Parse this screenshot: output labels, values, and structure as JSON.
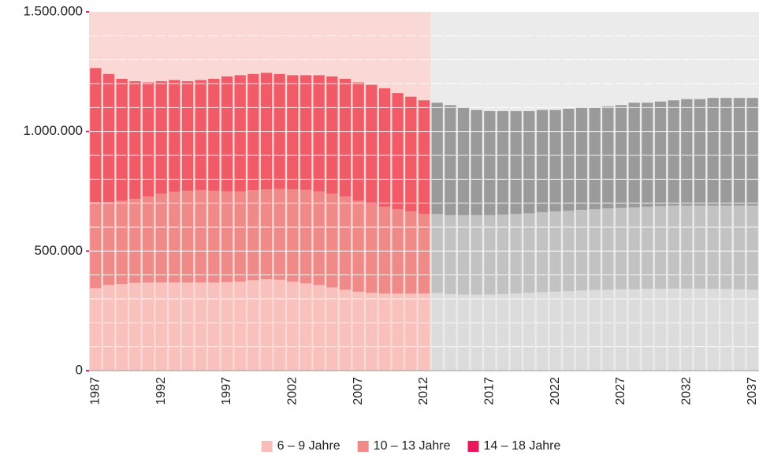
{
  "chart_data": {
    "type": "stacked_bar",
    "categories": [
      "1987",
      null,
      null,
      null,
      null,
      "1992",
      null,
      null,
      null,
      null,
      "1997",
      null,
      null,
      null,
      null,
      "2002",
      null,
      null,
      null,
      null,
      "2007",
      null,
      null,
      null,
      null,
      "2012",
      null,
      null,
      null,
      null,
      "2017",
      null,
      null,
      null,
      null,
      "2022",
      null,
      null,
      null,
      null,
      "2027",
      null,
      null,
      null,
      null,
      "2032",
      null,
      null,
      null,
      null,
      "2037"
    ],
    "series": [
      {
        "name": "6 – 9 Jahre",
        "color": "#f8bdb8",
        "values": [
          345000,
          358000,
          362000,
          367000,
          368000,
          368000,
          368000,
          368000,
          368000,
          368000,
          370000,
          372000,
          378000,
          382000,
          380000,
          372000,
          365000,
          358000,
          348000,
          338000,
          330000,
          325000,
          322000,
          322000,
          322000,
          322000,
          325000,
          320000,
          318000,
          318000,
          318000,
          320000,
          322000,
          325000,
          328000,
          330000,
          332000,
          335000,
          337000,
          338000,
          340000,
          340000,
          342000,
          342000,
          343000,
          343000,
          343000,
          342000,
          341000,
          340000,
          338000
        ]
      },
      {
        "name": "10 – 13 Jahre",
        "color": "#f08a89",
        "values": [
          360000,
          347000,
          348000,
          351000,
          360000,
          372000,
          380000,
          384000,
          387000,
          384000,
          380000,
          378000,
          377000,
          376000,
          380000,
          386000,
          391000,
          392000,
          392000,
          390000,
          380000,
          370000,
          363000,
          353000,
          343000,
          333000,
          330000,
          330000,
          332000,
          332000,
          332000,
          332000,
          333000,
          333000,
          334000,
          335000,
          336000,
          337000,
          338000,
          340000,
          340000,
          342000,
          343000,
          346000,
          347000,
          347000,
          347000,
          348000,
          349000,
          350000,
          352000
        ]
      },
      {
        "name": "14 – 18 Jahre",
        "color": "#e8185b",
        "values": [
          560000,
          535000,
          510000,
          492000,
          477000,
          470000,
          467000,
          458000,
          460000,
          468000,
          480000,
          485000,
          485000,
          487000,
          480000,
          477000,
          479000,
          485000,
          490000,
          492000,
          495000,
          500000,
          495000,
          485000,
          480000,
          475000,
          465000,
          460000,
          450000,
          440000,
          435000,
          433000,
          430000,
          427000,
          428000,
          425000,
          427000,
          428000,
          425000,
          427000,
          430000,
          438000,
          435000,
          437000,
          440000,
          445000,
          445000,
          450000,
          450000,
          450000,
          450000
        ]
      }
    ],
    "periods": [
      {
        "length": 26,
        "background": "#f9d8d5",
        "colors": [
          "#f8c1bc",
          "#f08a89",
          "#f05b67"
        ]
      },
      {
        "length": 25,
        "background": "#ebebeb",
        "colors": [
          "#dcdcdc",
          "#c2c2c2",
          "#9a9a9a"
        ]
      }
    ],
    "ylim": [
      0,
      1500000
    ],
    "yticks": [
      0,
      {
        "value": 500000,
        "label": "500.000"
      },
      {
        "value": 1000000,
        "label": "1.000.000"
      },
      {
        "value": 1500000,
        "label": "1.500.000"
      }
    ],
    "minor_yticks": [
      100000,
      200000,
      300000,
      400000,
      600000,
      700000,
      800000,
      900000,
      1100000,
      1200000,
      1300000,
      1400000
    ],
    "tick_color": "#e8185b",
    "grid_color": "#ffffff"
  }
}
